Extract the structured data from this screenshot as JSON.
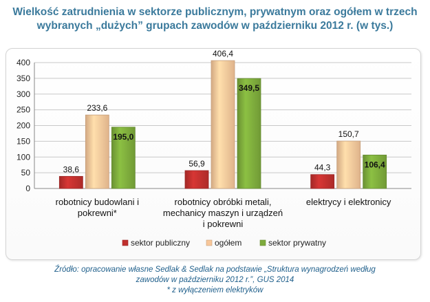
{
  "title": {
    "line1": "Wielkość zatrudnienia w sektorze publicznym, prywatnym oraz ogółem w trzech",
    "line2": "wybranych „dużych” grupach zawodów w październiku 2012 r. (w tys.)"
  },
  "chart_data": {
    "type": "bar",
    "categories": [
      [
        "robotnicy budowlani i",
        "pokrewni*"
      ],
      [
        "robotnicy obróbki metali,",
        "mechanicy maszyn i urządzeń",
        "i pokrewni"
      ],
      [
        "elektrycy i elektronicy"
      ]
    ],
    "series": [
      {
        "name": "sektor publiczny",
        "values": [
          38.6,
          56.9,
          44.3
        ],
        "labels": [
          "38,6",
          "56,9",
          "44,3"
        ],
        "color": "#c0302e",
        "label_bold": false
      },
      {
        "name": "ogółem",
        "values": [
          233.6,
          406.4,
          150.7
        ],
        "labels": [
          "233,6",
          "406,4",
          "150,7"
        ],
        "color": "#f8c79a",
        "label_bold": false
      },
      {
        "name": "sektor prywatny",
        "values": [
          195.0,
          349.5,
          106.4
        ],
        "labels": [
          "195,0",
          "349,5",
          "106,4"
        ],
        "color": "#7dab3c",
        "label_bold": true
      }
    ],
    "y_ticks": [
      0,
      50,
      100,
      150,
      200,
      250,
      300,
      350,
      400
    ],
    "ylim": [
      0,
      400
    ],
    "grid": true,
    "legend": "bottom"
  },
  "source": {
    "line1": "Źródło: opracowanie własne Sedlak & Sedlak na podstawie „Struktura wynagrodzeń według",
    "line2": "zawodów w październiku 2012 r.”, GUS 2014",
    "line3": "* z wyłączeniem elektryków"
  }
}
